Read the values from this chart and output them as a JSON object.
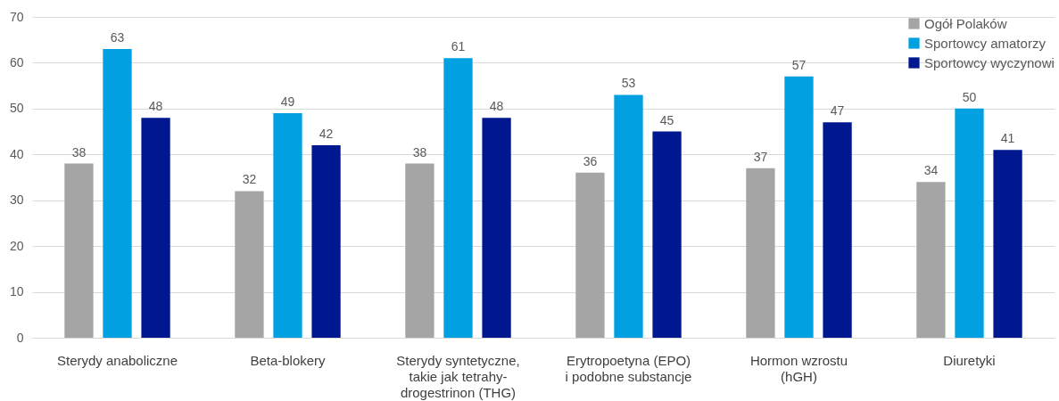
{
  "chart_data": {
    "type": "bar",
    "categories": [
      "Sterydy anaboliczne",
      "Beta-blokery",
      "Sterydy syntetyczne,\ntakie jak tetrahy-\ndrogestrinon (THG)",
      "Erytropoetyna (EPO)\ni podobne substancje",
      "Hormon wzrostu\n(hGH)",
      "Diuretyki"
    ],
    "series": [
      {
        "name": "Ogół Polaków",
        "color": "#a5a5a5",
        "values": [
          38,
          32,
          38,
          36,
          37,
          34
        ]
      },
      {
        "name": "Sportowcy amatorzy",
        "color": "#00a0e1",
        "values": [
          63,
          49,
          61,
          53,
          57,
          50
        ]
      },
      {
        "name": "Sportowcy wyczynowi",
        "color": "#00188f",
        "values": [
          48,
          42,
          48,
          45,
          47,
          41
        ]
      }
    ],
    "ylim": [
      0,
      70
    ],
    "yticks": [
      0,
      10,
      20,
      30,
      40,
      50,
      60,
      70
    ],
    "grid": "y",
    "legend": "top right",
    "data_labels": true
  }
}
